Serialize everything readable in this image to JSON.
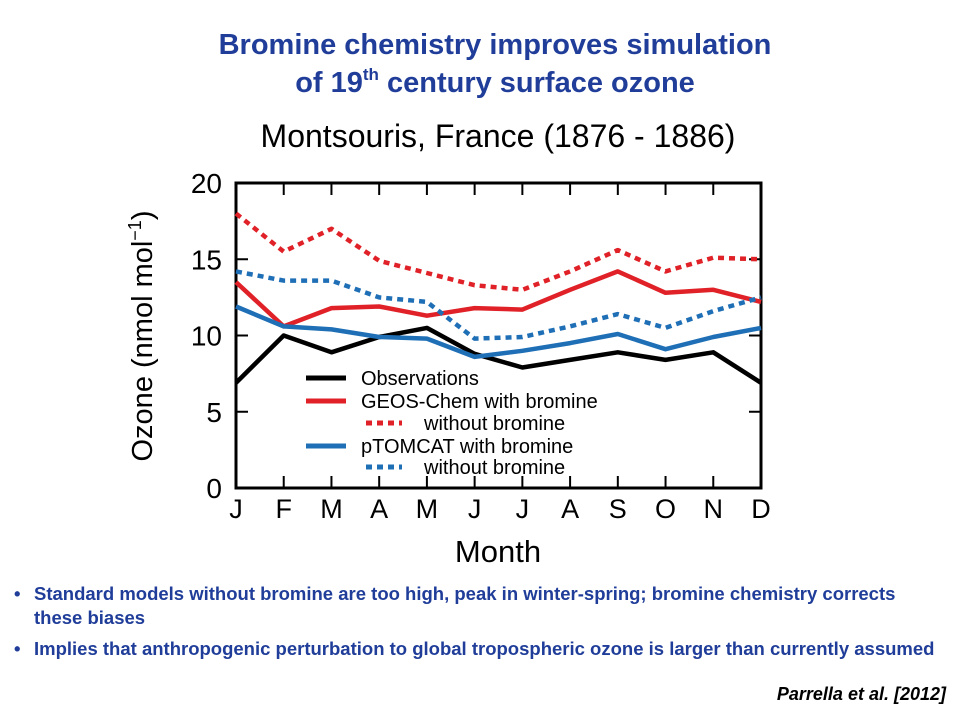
{
  "slide": {
    "title_line1": "Bromine chemistry improves simulation",
    "title_line2_pre": "of 19",
    "title_line2_sup": "th",
    "title_line2_post": " century surface ozone",
    "bullets": [
      "Standard models without bromine are too high, peak in winter-spring; bromine chemistry corrects these biases",
      "Implies that anthropogenic perturbation to global tropospheric ozone is larger than currently assumed"
    ],
    "citation": "Parrella et al. [2012]"
  },
  "chart_data": {
    "type": "line",
    "title": "Montsouris, France (1876 - 1886)",
    "xlabel": "Month",
    "ylabel": "Ozone (nmol mol",
    "ylabel_sup": "−1",
    "ylabel_close": ")",
    "categories": [
      "J",
      "F",
      "M",
      "A",
      "M",
      "J",
      "J",
      "A",
      "S",
      "O",
      "N",
      "D"
    ],
    "ylim": [
      0,
      20
    ],
    "yticks": [
      0,
      5,
      10,
      15,
      20
    ],
    "grid": false,
    "legend_position": "bottom-center",
    "series": [
      {
        "name": "Observations",
        "color": "#000000",
        "dash": "solid",
        "values": [
          6.9,
          10.0,
          8.9,
          9.9,
          10.5,
          8.8,
          7.9,
          8.4,
          8.9,
          8.4,
          8.9,
          6.9
        ]
      },
      {
        "name": "GEOS-Chem with bromine",
        "color": "#e02228",
        "dash": "solid",
        "values": [
          13.5,
          10.6,
          11.8,
          11.9,
          11.3,
          11.8,
          11.7,
          13.0,
          14.2,
          12.8,
          13.0,
          12.2
        ]
      },
      {
        "name": "without bromine",
        "color": "#e02228",
        "dash": "dotted",
        "values": [
          18.0,
          15.5,
          17.0,
          14.9,
          14.1,
          13.3,
          13.0,
          14.2,
          15.6,
          14.2,
          15.1,
          15.0
        ]
      },
      {
        "name": "pTOMCAT with bromine",
        "color": "#1f6fb6",
        "dash": "solid",
        "values": [
          11.9,
          10.6,
          10.4,
          9.9,
          9.8,
          8.6,
          9.0,
          9.5,
          10.1,
          9.1,
          9.9,
          10.5
        ]
      },
      {
        "name": "without bromine",
        "color": "#1f6fb6",
        "dash": "dotted",
        "values": [
          14.2,
          13.6,
          13.6,
          12.5,
          12.2,
          9.8,
          9.9,
          10.6,
          11.4,
          10.5,
          11.6,
          12.5
        ]
      }
    ]
  }
}
